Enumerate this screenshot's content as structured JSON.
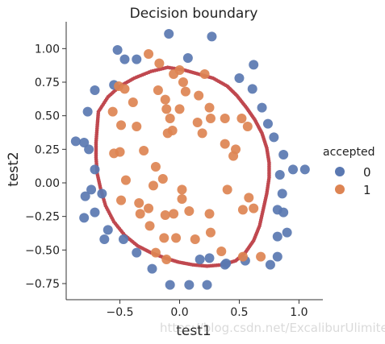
{
  "watermark": "https://blog.csdn.net/ExcaliburUlimited",
  "chart_data": {
    "type": "scatter",
    "title": "Decision boundary",
    "xlabel": "test1",
    "ylabel": "test2",
    "xlim": [
      -0.95,
      1.2
    ],
    "ylim": [
      -0.87,
      1.2
    ],
    "xticks": [
      -0.5,
      0.0,
      0.5,
      1.0
    ],
    "yticks": [
      -0.75,
      -0.5,
      -0.25,
      0.0,
      0.25,
      0.5,
      0.75,
      1.0
    ],
    "xtick_labels": [
      "−0.5",
      "0.0",
      "0.5",
      "1.0"
    ],
    "ytick_labels": [
      "−0.75",
      "−0.50",
      "−0.25",
      "0.00",
      "0.25",
      "0.50",
      "0.75",
      "1.00"
    ],
    "grid": false,
    "legend": {
      "title": "accepted",
      "placement": "right",
      "entries": [
        "0",
        "1"
      ]
    },
    "colors": {
      "0": "#5a78b1",
      "1": "#dd8453",
      "boundary": "#c0484f"
    },
    "series": [
      {
        "name": "0",
        "points": [
          [
            -0.09,
            1.11
          ],
          [
            0.27,
            1.09
          ],
          [
            -0.52,
            0.99
          ],
          [
            -0.46,
            0.92
          ],
          [
            -0.36,
            0.92
          ],
          [
            0.07,
            0.93
          ],
          [
            0.62,
            0.88
          ],
          [
            -0.71,
            0.69
          ],
          [
            -0.55,
            0.73
          ],
          [
            0.5,
            0.78
          ],
          [
            0.61,
            0.7
          ],
          [
            0.69,
            0.56
          ],
          [
            0.74,
            0.44
          ],
          [
            -0.77,
            0.53
          ],
          [
            -0.87,
            0.31
          ],
          [
            -0.8,
            0.3
          ],
          [
            -0.76,
            0.25
          ],
          [
            0.79,
            0.34
          ],
          [
            0.87,
            0.21
          ],
          [
            0.84,
            0.06
          ],
          [
            -0.71,
            0.1
          ],
          [
            -0.74,
            -0.05
          ],
          [
            -0.79,
            -0.1
          ],
          [
            -0.65,
            -0.08
          ],
          [
            0.95,
            0.1
          ],
          [
            1.05,
            0.1
          ],
          [
            -0.71,
            -0.22
          ],
          [
            -0.8,
            -0.26
          ],
          [
            0.86,
            -0.08
          ],
          [
            0.82,
            -0.2
          ],
          [
            0.87,
            -0.22
          ],
          [
            0.9,
            -0.37
          ],
          [
            0.82,
            -0.4
          ],
          [
            -0.6,
            -0.35
          ],
          [
            -0.63,
            -0.42
          ],
          [
            -0.47,
            -0.42
          ],
          [
            0.82,
            -0.55
          ],
          [
            -0.36,
            -0.52
          ],
          [
            0.76,
            -0.61
          ],
          [
            0.55,
            -0.58
          ],
          [
            0.39,
            -0.6
          ],
          [
            0.25,
            -0.56
          ],
          [
            0.17,
            -0.57
          ],
          [
            -0.23,
            -0.64
          ],
          [
            -0.08,
            -0.76
          ],
          [
            0.08,
            -0.76
          ],
          [
            0.23,
            -0.76
          ],
          [
            0.38,
            -0.61
          ]
        ]
      },
      {
        "name": "1",
        "points": [
          [
            -0.26,
            0.96
          ],
          [
            -0.17,
            0.89
          ],
          [
            0.0,
            0.84
          ],
          [
            -0.05,
            0.81
          ],
          [
            0.21,
            0.81
          ],
          [
            -0.51,
            0.72
          ],
          [
            -0.46,
            0.7
          ],
          [
            -0.18,
            0.69
          ],
          [
            0.03,
            0.75
          ],
          [
            0.05,
            0.68
          ],
          [
            -0.12,
            0.62
          ],
          [
            0.16,
            0.65
          ],
          [
            -0.39,
            0.6
          ],
          [
            -0.11,
            0.55
          ],
          [
            -0.56,
            0.53
          ],
          [
            0.0,
            0.55
          ],
          [
            0.25,
            0.56
          ],
          [
            0.26,
            0.48
          ],
          [
            0.38,
            0.48
          ],
          [
            0.52,
            0.48
          ],
          [
            -0.08,
            0.48
          ],
          [
            -0.06,
            0.39
          ],
          [
            0.15,
            0.45
          ],
          [
            0.57,
            0.42
          ],
          [
            -0.49,
            0.43
          ],
          [
            -0.36,
            0.42
          ],
          [
            0.19,
            0.37
          ],
          [
            -0.1,
            0.37
          ],
          [
            -0.55,
            0.22
          ],
          [
            -0.3,
            0.24
          ],
          [
            -0.5,
            0.23
          ],
          [
            0.38,
            0.29
          ],
          [
            0.47,
            0.25
          ],
          [
            0.45,
            0.2
          ],
          [
            -0.2,
            0.12
          ],
          [
            -0.14,
            0.03
          ],
          [
            -0.45,
            0.02
          ],
          [
            0.02,
            -0.05
          ],
          [
            -0.22,
            -0.02
          ],
          [
            0.4,
            -0.05
          ],
          [
            0.58,
            -0.11
          ],
          [
            -0.49,
            -0.13
          ],
          [
            -0.34,
            -0.15
          ],
          [
            -0.26,
            -0.19
          ],
          [
            0.02,
            -0.12
          ],
          [
            0.62,
            -0.19
          ],
          [
            -0.33,
            -0.23
          ],
          [
            -0.12,
            -0.24
          ],
          [
            -0.05,
            -0.23
          ],
          [
            0.08,
            -0.21
          ],
          [
            0.25,
            -0.23
          ],
          [
            0.53,
            -0.2
          ],
          [
            -0.25,
            -0.32
          ],
          [
            -0.13,
            -0.41
          ],
          [
            -0.03,
            -0.41
          ],
          [
            0.13,
            -0.42
          ],
          [
            0.26,
            -0.37
          ],
          [
            0.35,
            -0.51
          ],
          [
            -0.2,
            -0.52
          ],
          [
            -0.11,
            -0.57
          ],
          [
            0.53,
            -0.55
          ],
          [
            0.68,
            -0.55
          ]
        ]
      }
    ],
    "boundary_points": [
      [
        -0.68,
        0.53
      ],
      [
        -0.6,
        0.64
      ],
      [
        -0.5,
        0.72
      ],
      [
        -0.38,
        0.78
      ],
      [
        -0.24,
        0.83
      ],
      [
        -0.1,
        0.86
      ],
      [
        0.04,
        0.84
      ],
      [
        0.16,
        0.81
      ],
      [
        0.28,
        0.78
      ],
      [
        0.4,
        0.72
      ],
      [
        0.48,
        0.65
      ],
      [
        0.56,
        0.56
      ],
      [
        0.63,
        0.47
      ],
      [
        0.69,
        0.37
      ],
      [
        0.73,
        0.26
      ],
      [
        0.75,
        0.15
      ],
      [
        0.75,
        0.04
      ],
      [
        0.73,
        -0.08
      ],
      [
        0.7,
        -0.2
      ],
      [
        0.67,
        -0.32
      ],
      [
        0.62,
        -0.43
      ],
      [
        0.55,
        -0.52
      ],
      [
        0.47,
        -0.58
      ],
      [
        0.36,
        -0.61
      ],
      [
        0.23,
        -0.62
      ],
      [
        0.11,
        -0.61
      ],
      [
        -0.01,
        -0.59
      ],
      [
        -0.12,
        -0.56
      ],
      [
        -0.24,
        -0.52
      ],
      [
        -0.35,
        -0.47
      ],
      [
        -0.46,
        -0.39
      ],
      [
        -0.55,
        -0.29
      ],
      [
        -0.62,
        -0.17
      ],
      [
        -0.66,
        -0.05
      ],
      [
        -0.69,
        0.07
      ],
      [
        -0.7,
        0.19
      ],
      [
        -0.7,
        0.3
      ],
      [
        -0.69,
        0.42
      ],
      [
        -0.68,
        0.53
      ]
    ]
  }
}
